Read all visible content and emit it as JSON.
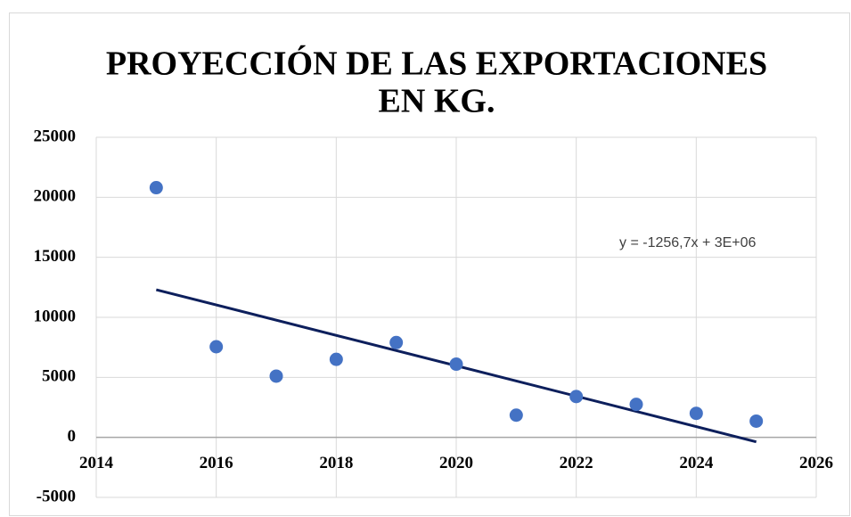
{
  "chart_data": {
    "type": "scatter",
    "title": [
      "PROYECCIÓN DE LAS EXPORTACIONES",
      "EN KG."
    ],
    "x": [
      2015,
      2016,
      2017,
      2018,
      2019,
      2020,
      2021,
      2022,
      2023,
      2024,
      2025
    ],
    "series": [
      {
        "color": "#4472c4",
        "values": [
          20800,
          7550,
          5100,
          6500,
          7900,
          6100,
          1850,
          3400,
          2750,
          2000,
          1350
        ]
      }
    ],
    "trendline": {
      "x": [
        2015,
        2025
      ],
      "values": [
        12300,
        -370
      ],
      "color": "#0d1f5c",
      "label": "y = -1256,7x + 3E+06"
    },
    "xlim": [
      2014,
      2026
    ],
    "xticks": [
      2014,
      2016,
      2018,
      2020,
      2022,
      2024,
      2026
    ],
    "ylim": [
      -5000,
      25000
    ],
    "yticks": [
      -5000,
      0,
      5000,
      10000,
      15000,
      20000,
      25000
    ],
    "grid": true
  }
}
